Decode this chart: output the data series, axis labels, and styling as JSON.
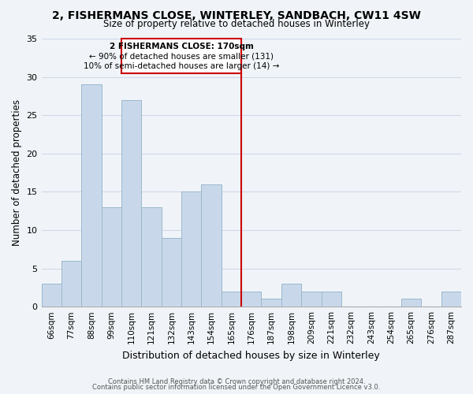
{
  "title": "2, FISHERMANS CLOSE, WINTERLEY, SANDBACH, CW11 4SW",
  "subtitle": "Size of property relative to detached houses in Winterley",
  "xlabel": "Distribution of detached houses by size in Winterley",
  "ylabel": "Number of detached properties",
  "bar_color": "#c8d8ea",
  "bar_edge_color": "#9ab8cc",
  "categories": [
    "66sqm",
    "77sqm",
    "88sqm",
    "99sqm",
    "110sqm",
    "121sqm",
    "132sqm",
    "143sqm",
    "154sqm",
    "165sqm",
    "176sqm",
    "187sqm",
    "198sqm",
    "209sqm",
    "221sqm",
    "232sqm",
    "243sqm",
    "254sqm",
    "265sqm",
    "276sqm",
    "287sqm"
  ],
  "values": [
    3,
    6,
    29,
    13,
    27,
    13,
    9,
    15,
    16,
    2,
    2,
    1,
    3,
    2,
    2,
    0,
    0,
    0,
    1,
    0,
    2
  ],
  "ylim": [
    0,
    35
  ],
  "yticks": [
    0,
    5,
    10,
    15,
    20,
    25,
    30,
    35
  ],
  "annotation_text_line1": "2 FISHERMANS CLOSE: 170sqm",
  "annotation_text_line2": "← 90% of detached houses are smaller (131)",
  "annotation_text_line3": "10% of semi-detached houses are larger (14) →",
  "footer_line1": "Contains HM Land Registry data © Crown copyright and database right 2024.",
  "footer_line2": "Contains public sector information licensed under the Open Government Licence v3.0.",
  "grid_color": "#d0d8e8",
  "annotation_box_edge_color": "#cc0000",
  "annotation_line_color": "#cc0000",
  "background_color": "#f0f4f8",
  "vline_idx": 9
}
